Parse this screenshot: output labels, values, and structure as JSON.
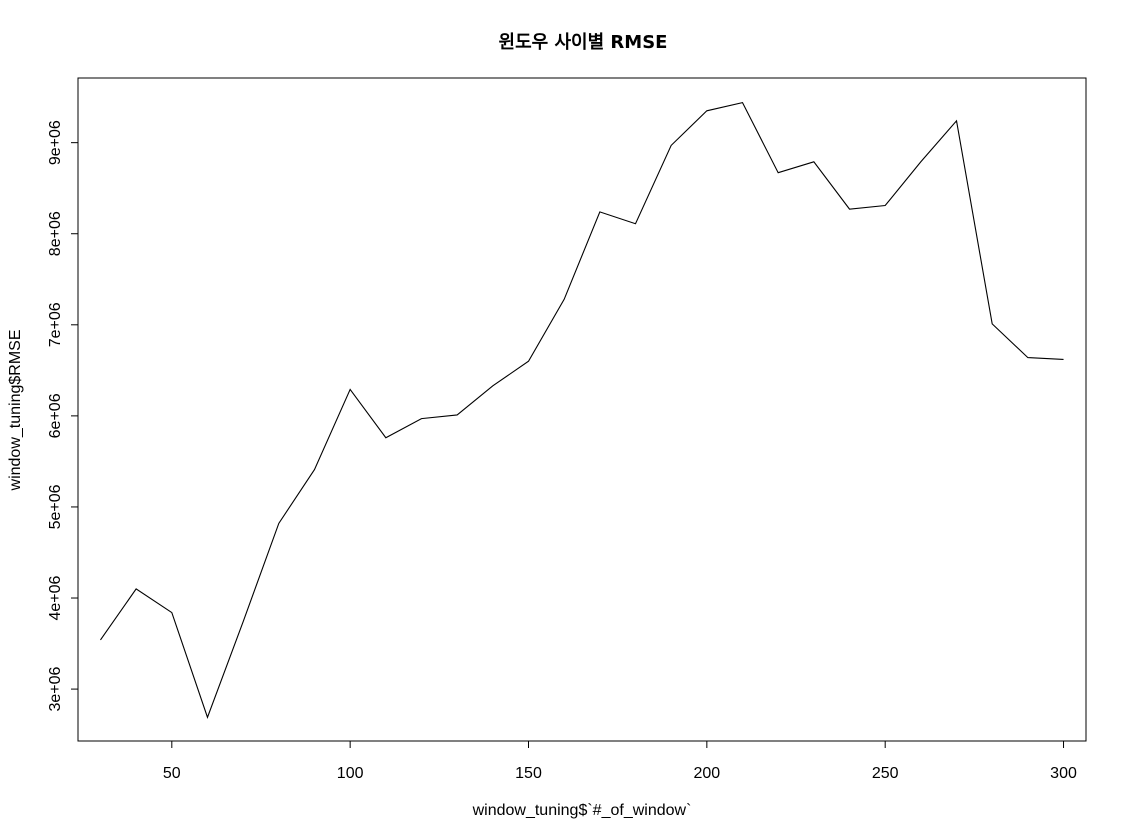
{
  "chart_data": {
    "type": "line",
    "title": "윈도우 사이별 RMSE",
    "xlabel": "window_tuning$`#_of_window`",
    "ylabel": "window_tuning$RMSE",
    "x": [
      30,
      40,
      50,
      60,
      70,
      80,
      90,
      100,
      110,
      120,
      130,
      140,
      150,
      160,
      170,
      180,
      190,
      200,
      210,
      220,
      230,
      240,
      250,
      260,
      270,
      280,
      290,
      300
    ],
    "series": [
      {
        "values": [
          3540000,
          4100000,
          3840000,
          2690000,
          3740000,
          4820000,
          5410000,
          6290000,
          5760000,
          5970000,
          6010000,
          6330000,
          6600000,
          7280000,
          8240000,
          8110000,
          8970000,
          9350000,
          9440000,
          8670000,
          8790000,
          8270000,
          8310000,
          8790000,
          9240000,
          7010000,
          6640000,
          6620000
        ]
      }
    ],
    "xlim": [
      23.7,
      306.3
    ],
    "ylim": [
      2430000,
      9710000
    ],
    "x_ticks": [
      50,
      100,
      150,
      200,
      250,
      300
    ],
    "x_tick_labels": [
      "50",
      "100",
      "150",
      "200",
      "250",
      "300"
    ],
    "y_ticks": [
      3000000,
      4000000,
      5000000,
      6000000,
      7000000,
      8000000,
      9000000
    ],
    "y_tick_labels": [
      "3e+06",
      "4e+06",
      "5e+06",
      "6e+06",
      "7e+06",
      "8e+06",
      "9e+06"
    ],
    "grid": false,
    "legend": "none"
  }
}
